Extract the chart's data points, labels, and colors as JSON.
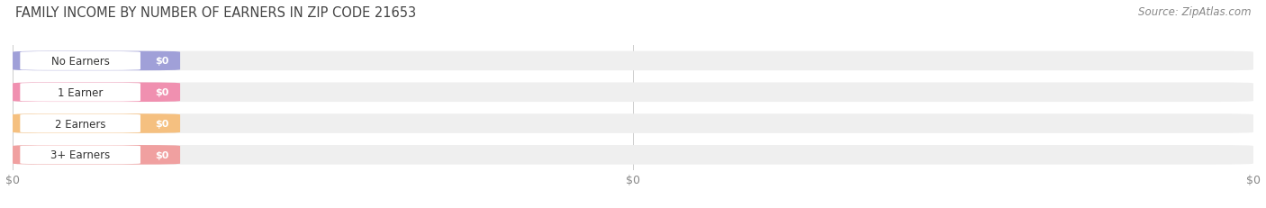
{
  "title": "FAMILY INCOME BY NUMBER OF EARNERS IN ZIP CODE 21653",
  "source": "Source: ZipAtlas.com",
  "categories": [
    "No Earners",
    "1 Earner",
    "2 Earners",
    "3+ Earners"
  ],
  "values": [
    0,
    0,
    0,
    0
  ],
  "bar_colors": [
    "#a0a0d8",
    "#f090b0",
    "#f5c080",
    "#f0a0a0"
  ],
  "bar_bg_color": "#efefef",
  "xlim": [
    0,
    1
  ],
  "xlabel_ticks": [
    0,
    0.5,
    1.0
  ],
  "xlabel_labels": [
    "$0",
    "$0",
    "$0"
  ],
  "title_fontsize": 10.5,
  "source_fontsize": 8.5,
  "bar_height": 0.62,
  "figsize": [
    14.06,
    2.32
  ],
  "dpi": 100
}
